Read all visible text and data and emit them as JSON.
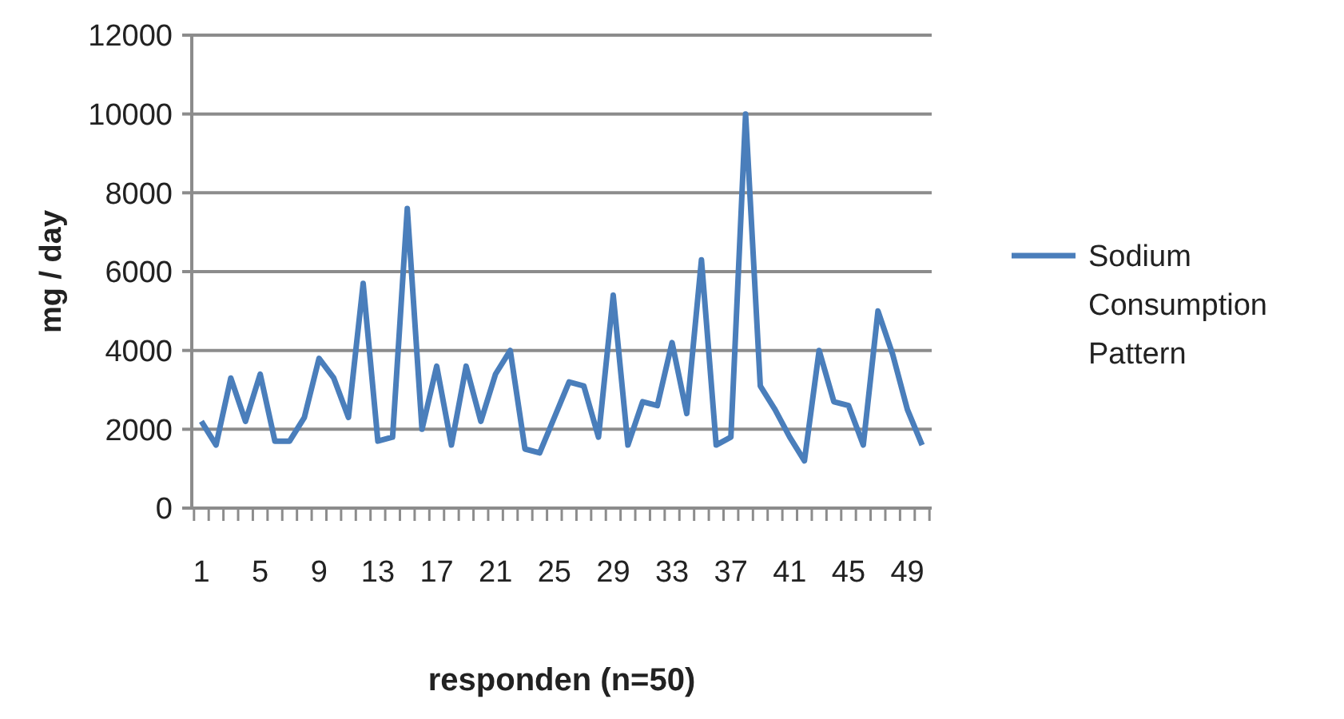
{
  "chart_data": {
    "type": "line",
    "xlabel": "responden (n=50)",
    "ylabel": "mg / day",
    "categories": [
      "1",
      null,
      null,
      null,
      "5",
      null,
      null,
      null,
      "9",
      null,
      null,
      null,
      "13",
      null,
      null,
      null,
      "17",
      null,
      null,
      null,
      "21",
      null,
      null,
      null,
      "25",
      null,
      null,
      null,
      "29",
      null,
      null,
      null,
      "33",
      null,
      null,
      null,
      "37",
      null,
      null,
      null,
      "41",
      null,
      null,
      null,
      "45",
      null,
      null,
      null,
      "49",
      null
    ],
    "series": [
      {
        "name": "Sodium Consumption Pattern",
        "color": "#4a7ebb",
        "values": [
          2200,
          1600,
          3300,
          2200,
          3400,
          1700,
          1700,
          2300,
          3800,
          3300,
          2300,
          5700,
          1700,
          1800,
          7600,
          2000,
          3600,
          1600,
          3600,
          2200,
          3400,
          4000,
          1500,
          1400,
          2300,
          3200,
          3100,
          1800,
          5400,
          1600,
          2700,
          2600,
          4200,
          2400,
          6300,
          1600,
          1800,
          10000,
          3100,
          2500,
          1800,
          1200,
          4000,
          2700,
          2600,
          1600,
          5000,
          3900,
          2500,
          1600
        ]
      }
    ],
    "ylim": [
      0,
      12000
    ],
    "yticks": [
      0,
      2000,
      4000,
      6000,
      8000,
      10000,
      12000
    ],
    "grid": "y",
    "legend": "right",
    "marker": "none",
    "line_style": "solid"
  }
}
